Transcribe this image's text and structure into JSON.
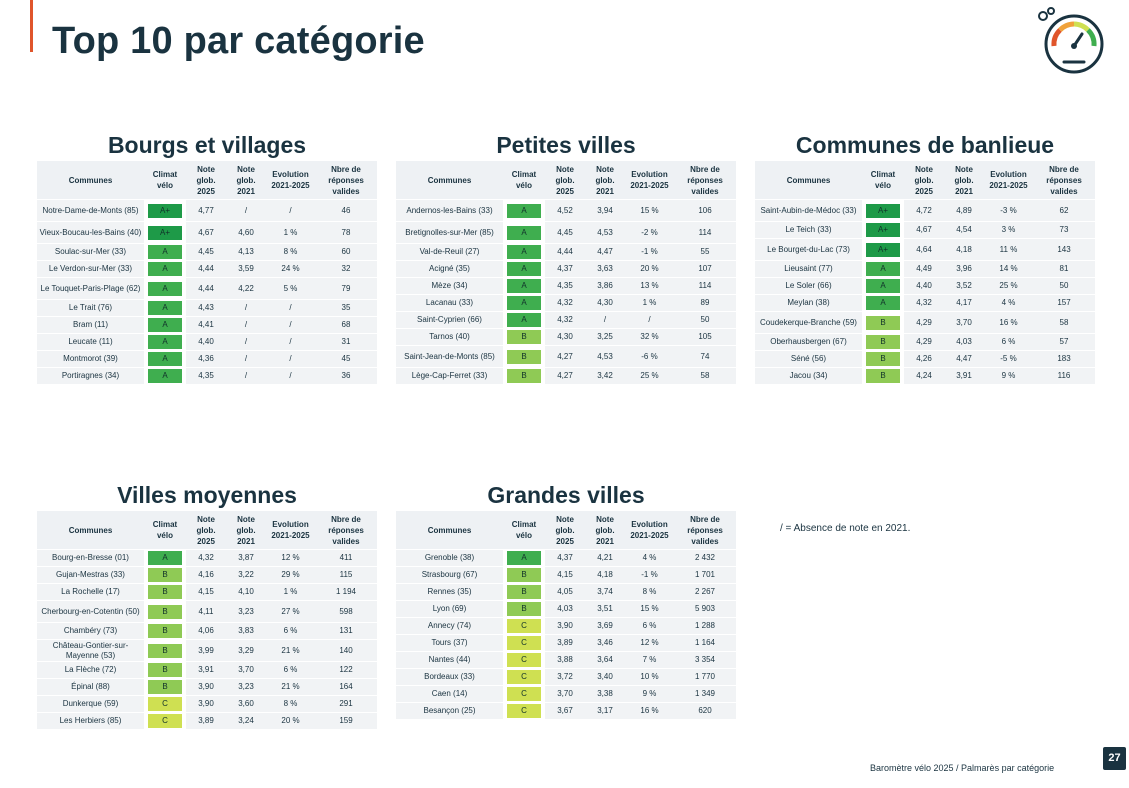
{
  "page": {
    "title": "Top 10 par catégorie",
    "note": "/ = Absence de note en 2021.",
    "footer": "Baromètre vélo 2025 / Palmarès par catégorie",
    "page_number": "27"
  },
  "columns": [
    "Communes",
    "Climat vélo",
    "Note glob. 2025",
    "Note glob. 2021",
    "Evolution 2021-2025",
    "Nbre de réponses valides"
  ],
  "grade_colors": {
    "A+": "#1e9a48",
    "A": "#3fae4f",
    "B": "#8fca55",
    "C": "#cfe052"
  },
  "blocks": [
    {
      "title": "Bourgs et villages",
      "rows": [
        [
          "Notre-Dame-de-Monts (85)",
          "A+",
          "4,77",
          "/",
          "/",
          "46"
        ],
        [
          "Vieux-Boucau-les-Bains (40)",
          "A+",
          "4,67",
          "4,60",
          "1 %",
          "78"
        ],
        [
          "Soulac-sur-Mer (33)",
          "A",
          "4,45",
          "4,13",
          "8 %",
          "60"
        ],
        [
          "Le Verdon-sur-Mer (33)",
          "A",
          "4,44",
          "3,59",
          "24 %",
          "32"
        ],
        [
          "Le Touquet-Paris-Plage (62)",
          "A",
          "4,44",
          "4,22",
          "5 %",
          "79"
        ],
        [
          "Le Trait (76)",
          "A",
          "4,43",
          "/",
          "/",
          "35"
        ],
        [
          "Bram (11)",
          "A",
          "4,41",
          "/",
          "/",
          "68"
        ],
        [
          "Leucate (11)",
          "A",
          "4,40",
          "/",
          "/",
          "31"
        ],
        [
          "Montmorot (39)",
          "A",
          "4,36",
          "/",
          "/",
          "45"
        ],
        [
          "Portiragnes (34)",
          "A",
          "4,35",
          "/",
          "/",
          "36"
        ]
      ]
    },
    {
      "title": "Petites villes",
      "rows": [
        [
          "Andernos-les-Bains (33)",
          "A",
          "4,52",
          "3,94",
          "15 %",
          "106"
        ],
        [
          "Bretignolles-sur-Mer (85)",
          "A",
          "4,45",
          "4,53",
          "-2 %",
          "114"
        ],
        [
          "Val-de-Reuil (27)",
          "A",
          "4,44",
          "4,47",
          "-1 %",
          "55"
        ],
        [
          "Acigné (35)",
          "A",
          "4,37",
          "3,63",
          "20 %",
          "107"
        ],
        [
          "Mèze (34)",
          "A",
          "4,35",
          "3,86",
          "13 %",
          "114"
        ],
        [
          "Lacanau (33)",
          "A",
          "4,32",
          "4,30",
          "1 %",
          "89"
        ],
        [
          "Saint-Cyprien (66)",
          "A",
          "4,32",
          "/",
          "/",
          "50"
        ],
        [
          "Tarnos (40)",
          "B",
          "4,30",
          "3,25",
          "32 %",
          "105"
        ],
        [
          "Saint-Jean-de-Monts (85)",
          "B",
          "4,27",
          "4,53",
          "-6 %",
          "74"
        ],
        [
          "Lège-Cap-Ferret (33)",
          "B",
          "4,27",
          "3,42",
          "25 %",
          "58"
        ]
      ]
    },
    {
      "title": "Communes de banlieue",
      "rows": [
        [
          "Saint-Aubin-de-Médoc (33)",
          "A+",
          "4,72",
          "4,89",
          "-3 %",
          "62"
        ],
        [
          "Le Teich (33)",
          "A+",
          "4,67",
          "4,54",
          "3 %",
          "73"
        ],
        [
          "Le Bourget-du-Lac (73)",
          "A+",
          "4,64",
          "4,18",
          "11 %",
          "143"
        ],
        [
          "Lieusaint (77)",
          "A",
          "4,49",
          "3,96",
          "14 %",
          "81"
        ],
        [
          "Le Soler (66)",
          "A",
          "4,40",
          "3,52",
          "25 %",
          "50"
        ],
        [
          "Meylan (38)",
          "A",
          "4,32",
          "4,17",
          "4 %",
          "157"
        ],
        [
          "Coudekerque-Branche (59)",
          "B",
          "4,29",
          "3,70",
          "16 %",
          "58"
        ],
        [
          "Oberhausbergen (67)",
          "B",
          "4,29",
          "4,03",
          "6 %",
          "57"
        ],
        [
          "Séné (56)",
          "B",
          "4,26",
          "4,47",
          "-5 %",
          "183"
        ],
        [
          "Jacou (34)",
          "B",
          "4,24",
          "3,91",
          "9 %",
          "116"
        ]
      ]
    },
    {
      "title": "Villes moyennes",
      "rows": [
        [
          "Bourg-en-Bresse (01)",
          "A",
          "4,32",
          "3,87",
          "12 %",
          "411"
        ],
        [
          "Gujan-Mestras (33)",
          "B",
          "4,16",
          "3,22",
          "29 %",
          "115"
        ],
        [
          "La Rochelle (17)",
          "B",
          "4,15",
          "4,10",
          "1 %",
          "1 194"
        ],
        [
          "Cherbourg-en-Cotentin (50)",
          "B",
          "4,11",
          "3,23",
          "27 %",
          "598"
        ],
        [
          "Chambéry (73)",
          "B",
          "4,06",
          "3,83",
          "6 %",
          "131"
        ],
        [
          "Château-Gontier-sur-Mayenne (53)",
          "B",
          "3,99",
          "3,29",
          "21 %",
          "140"
        ],
        [
          "La Flèche (72)",
          "B",
          "3,91",
          "3,70",
          "6 %",
          "122"
        ],
        [
          "Épinal (88)",
          "B",
          "3,90",
          "3,23",
          "21 %",
          "164"
        ],
        [
          "Dunkerque (59)",
          "C",
          "3,90",
          "3,60",
          "8 %",
          "291"
        ],
        [
          "Les Herbiers (85)",
          "C",
          "3,89",
          "3,24",
          "20 %",
          "159"
        ]
      ]
    },
    {
      "title": "Grandes villes",
      "rows": [
        [
          "Grenoble (38)",
          "A",
          "4,37",
          "4,21",
          "4 %",
          "2 432"
        ],
        [
          "Strasbourg (67)",
          "B",
          "4,15",
          "4,18",
          "-1 %",
          "1 701"
        ],
        [
          "Rennes (35)",
          "B",
          "4,05",
          "3,74",
          "8 %",
          "2 267"
        ],
        [
          "Lyon (69)",
          "B",
          "4,03",
          "3,51",
          "15 %",
          "5 903"
        ],
        [
          "Annecy (74)",
          "C",
          "3,90",
          "3,69",
          "6 %",
          "1 288"
        ],
        [
          "Tours (37)",
          "C",
          "3,89",
          "3,46",
          "12 %",
          "1 164"
        ],
        [
          "Nantes (44)",
          "C",
          "3,88",
          "3,64",
          "7 %",
          "3 354"
        ],
        [
          "Bordeaux (33)",
          "C",
          "3,72",
          "3,40",
          "10 %",
          "1 770"
        ],
        [
          "Caen (14)",
          "C",
          "3,70",
          "3,38",
          "9 %",
          "1 349"
        ],
        [
          "Besançon (25)",
          "C",
          "3,67",
          "3,17",
          "16 %",
          "620"
        ]
      ]
    }
  ]
}
